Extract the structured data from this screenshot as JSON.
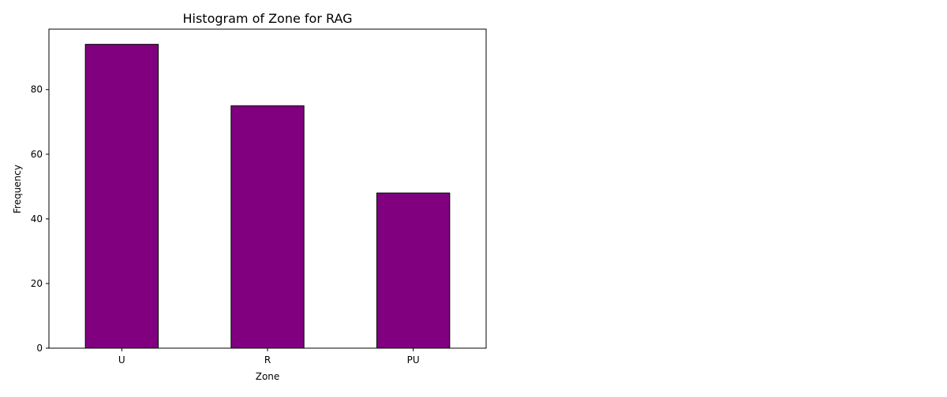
{
  "chart_data": {
    "type": "bar",
    "title": "Histogram of Zone for RAG",
    "xlabel": "Zone",
    "ylabel": "Frequency",
    "categories": [
      "U",
      "R",
      "PU"
    ],
    "values": [
      94,
      75,
      48
    ],
    "ylim": [
      0,
      98.7
    ],
    "yticks": [
      0,
      20,
      40,
      60,
      80
    ],
    "grid": false,
    "legend": false,
    "colors": {
      "bar_fill": "#800080",
      "bar_edge": "#000000",
      "axes": "#000000",
      "background": "#ffffff"
    }
  }
}
